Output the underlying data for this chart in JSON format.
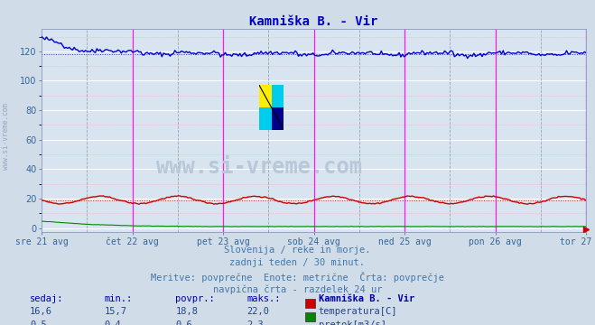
{
  "title": "Kamniška B. - Vir",
  "title_color": "#0000cc",
  "bg_color": "#d0dce8",
  "plot_bg_color": "#d8e4f0",
  "grid_major_color": "#ffffff",
  "grid_minor_color": "#ffaaaa",
  "x_tick_labels": [
    "sre 21 avg",
    "čet 22 avg",
    "pet 23 avg",
    "sob 24 avg",
    "ned 25 avg",
    "pon 26 avg",
    "tor 27 avg"
  ],
  "y_ticks": [
    0,
    20,
    40,
    60,
    80,
    100,
    120
  ],
  "ylim": [
    -3,
    135
  ],
  "n_points": 336,
  "temp_avg": 18.8,
  "visina_avg": 118,
  "temp_color": "#cc0000",
  "pretok_color": "#008800",
  "visina_color": "#0000cc",
  "vline_color": "#ff00ff",
  "vline_dash_color": "#666666",
  "watermark": "www.si-vreme.com",
  "watermark_color": "#b8c8d8",
  "logo_colors": [
    "#ffee00",
    "#00ccee",
    "#00ccee",
    "#000088"
  ],
  "subtitle1": "Slovenija / reke in morje.",
  "subtitle2": "zadnji teden / 30 minut.",
  "subtitle3": "Meritve: povprečne  Enote: metrične  Črta: povprečje",
  "subtitle4": "navpična črta - razdelek 24 ur",
  "subtitle_color": "#4477aa",
  "table_header_color": "#0000aa",
  "table_value_color": "#224488",
  "left_label": "www.si-vreme.com",
  "left_label_color": "#8899bb",
  "tick_color": "#336699",
  "border_color": "#8899bb"
}
